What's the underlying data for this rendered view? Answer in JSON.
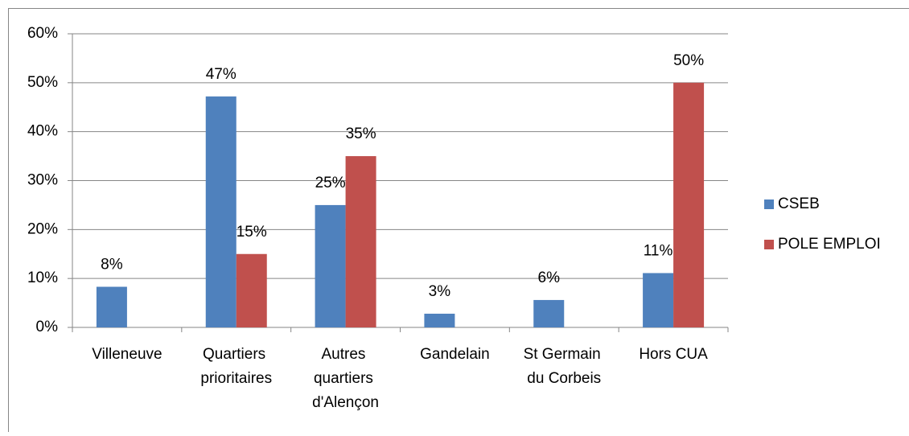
{
  "chart_data": {
    "type": "bar",
    "categories": [
      "Villeneuve",
      "Quartiers prioritaires",
      "Autres quartiers d'Alençon",
      "Gandelain",
      "St Germain du Corbeis",
      "Hors CUA"
    ],
    "series": [
      {
        "name": "CSEB",
        "color": "#4f81bd",
        "values": [
          8.3,
          47.2,
          25,
          2.8,
          5.6,
          11.1
        ],
        "value_labels": [
          "8%",
          "47%",
          "25%",
          "3%",
          "6%",
          "11%"
        ]
      },
      {
        "name": "POLE EMPLOI",
        "color": "#c0504d",
        "values": [
          null,
          15,
          35,
          null,
          null,
          50
        ],
        "value_labels": [
          null,
          "15%",
          "35%",
          null,
          null,
          "50%"
        ]
      }
    ],
    "ylim": [
      0,
      60
    ],
    "yticks": [
      {
        "value": 0,
        "label": "0%"
      },
      {
        "value": 10,
        "label": "10%"
      },
      {
        "value": 20,
        "label": "20%"
      },
      {
        "value": 30,
        "label": "30%"
      },
      {
        "value": 40,
        "label": "40%"
      },
      {
        "value": 50,
        "label": "50%"
      },
      {
        "value": 60,
        "label": "60%"
      }
    ],
    "grid": true,
    "legend": "right"
  }
}
